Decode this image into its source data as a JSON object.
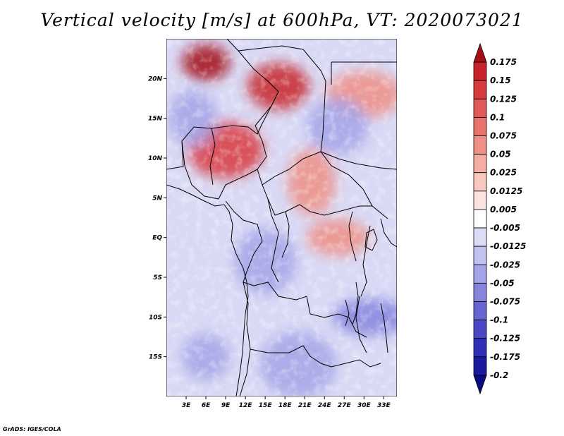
{
  "title": "Vertical velocity [m/s] at 600hPa, VT: 2020073021",
  "credit": "GrADS: IGES/COLA",
  "map": {
    "region": "Central Africa",
    "lon_range": [
      0,
      35
    ],
    "lat_range": [
      -20,
      25
    ],
    "x_ticks": [
      "3E",
      "6E",
      "9E",
      "12E",
      "15E",
      "18E",
      "21E",
      "24E",
      "27E",
      "30E",
      "33E"
    ],
    "x_tick_values": [
      3,
      6,
      9,
      12,
      15,
      18,
      21,
      24,
      27,
      30,
      33
    ],
    "y_ticks": [
      "20N",
      "15N",
      "10N",
      "5N",
      "EQ",
      "5S",
      "10S",
      "15S"
    ],
    "y_tick_values": [
      20,
      15,
      10,
      5,
      0,
      -5,
      -10,
      -15
    ]
  },
  "colorbar": {
    "levels": [
      "0.175",
      "0.15",
      "0.125",
      "0.1",
      "0.075",
      "0.05",
      "0.025",
      "0.0125",
      "0.005",
      "-0.005",
      "-0.0125",
      "-0.025",
      "-0.05",
      "-0.075",
      "-0.1",
      "-0.125",
      "-0.175",
      "-0.2"
    ],
    "colors": [
      "#a50f15",
      "#c8232c",
      "#d93a3e",
      "#e05a57",
      "#e8746c",
      "#ef8f85",
      "#f4aca3",
      "#f8c8c1",
      "#fce2de",
      "#ffffff",
      "#dcdcf7",
      "#c2c2f0",
      "#a4a4e8",
      "#8585de",
      "#6666d2",
      "#4949c6",
      "#3030b6",
      "#1a1a9c",
      "#0a0a80"
    ]
  },
  "chart_data": {
    "type": "heatmap",
    "title": "Vertical velocity [m/s] at 600hPa, VT: 2020073021",
    "variable": "Vertical velocity",
    "units": "m/s",
    "level": "600hPa",
    "valid_time": "2020073021",
    "x_range": [
      0,
      35
    ],
    "y_range": [
      -20,
      25
    ],
    "colorbar_levels": [
      0.175,
      0.15,
      0.125,
      0.1,
      0.075,
      0.05,
      0.025,
      0.0125,
      0.005,
      -0.005,
      -0.0125,
      -0.025,
      -0.05,
      -0.075,
      -0.1,
      -0.125,
      -0.175,
      -0.2
    ],
    "hotspots": [
      {
        "lon": 6,
        "lat": 22,
        "value": 0.175
      },
      {
        "lon": 17,
        "lat": 19,
        "value": 0.15
      },
      {
        "lon": 9,
        "lat": 11,
        "value": 0.125
      },
      {
        "lon": 22,
        "lat": 7,
        "value": 0.05
      },
      {
        "lon": 26,
        "lat": 0,
        "value": 0.05
      },
      {
        "lon": 30,
        "lat": 18,
        "value": 0.05
      },
      {
        "lon": 4,
        "lat": 15,
        "value": -0.05
      },
      {
        "lon": 15,
        "lat": -3,
        "value": -0.05
      },
      {
        "lon": 31,
        "lat": -10,
        "value": -0.075
      },
      {
        "lon": 6,
        "lat": -15,
        "value": -0.05
      },
      {
        "lon": 26,
        "lat": 14,
        "value": -0.05
      },
      {
        "lon": 20,
        "lat": -16,
        "value": -0.05
      }
    ]
  }
}
